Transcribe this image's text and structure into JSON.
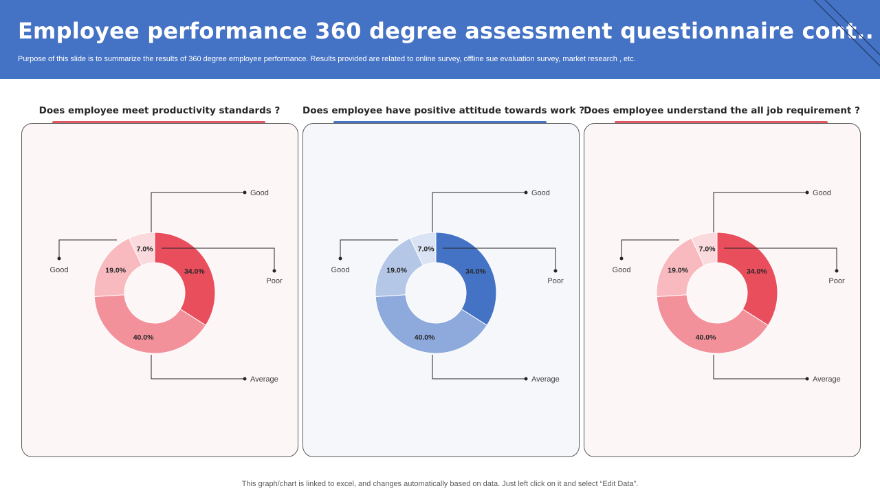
{
  "header": {
    "title": "Employee performance 360 degree assessment questionnaire cont..",
    "subtitle": "Purpose of this slide is to summarize the results of 360 degree employee performance. Results provided are related to online  survey, offline sue evaluation survey, market research , etc."
  },
  "footer": {
    "note": "This graph/chart is linked to excel,  and changes automatically based on data. Just left click on it and select “Edit Data”."
  },
  "chart_data": [
    {
      "type": "pie",
      "title": "Does employee meet productivity standards ?",
      "slices": [
        {
          "label": "Poor",
          "value": 34.0,
          "display": "34.0%",
          "color": "#e94e5d"
        },
        {
          "label": "Average",
          "value": 40.0,
          "display": "40.0%",
          "color": "#f3919b"
        },
        {
          "label": "Good",
          "value": 19.0,
          "display": "19.0%",
          "color": "#f8b9bf"
        },
        {
          "label": "Good",
          "value": 7.0,
          "display": "7.0%",
          "color": "#fbdadd"
        }
      ],
      "accent": "#e05a66",
      "panel_bg": "#fdf6f6"
    },
    {
      "type": "pie",
      "title": "Does employee have positive attitude towards work ?",
      "slices": [
        {
          "label": "Poor",
          "value": 34.0,
          "display": "34.0%",
          "color": "#4472c4"
        },
        {
          "label": "Average",
          "value": 40.0,
          "display": "40.0%",
          "color": "#8ea9db"
        },
        {
          "label": "Good",
          "value": 19.0,
          "display": "19.0%",
          "color": "#b4c7e7"
        },
        {
          "label": "Good",
          "value": 7.0,
          "display": "7.0%",
          "color": "#dae3f3"
        }
      ],
      "accent": "#4472c4",
      "panel_bg": "#f5f7fb"
    },
    {
      "type": "pie",
      "title": "Does employee understand the all job requirement ?",
      "slices": [
        {
          "label": "Poor",
          "value": 34.0,
          "display": "34.0%",
          "color": "#e94e5d"
        },
        {
          "label": "Average",
          "value": 40.0,
          "display": "40.0%",
          "color": "#f3919b"
        },
        {
          "label": "Good",
          "value": 19.0,
          "display": "19.0%",
          "color": "#f8b9bf"
        },
        {
          "label": "Good",
          "value": 7.0,
          "display": "7.0%",
          "color": "#fbdadd"
        }
      ],
      "accent": "#e05a66",
      "panel_bg": "#fdf6f6"
    }
  ]
}
